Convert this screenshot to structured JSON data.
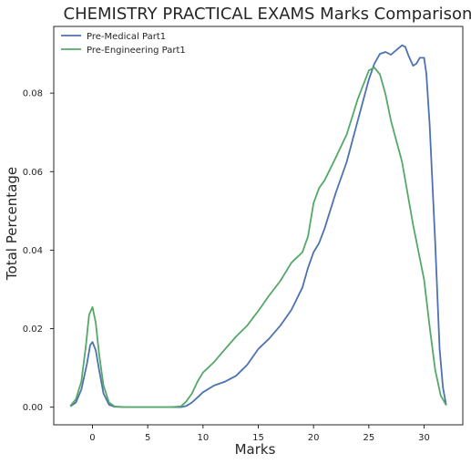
{
  "chart_data": {
    "type": "line",
    "title": "CHEMISTRY PRACTICAL EXAMS Marks Comparison",
    "xlabel": "Marks",
    "ylabel": "Total Percentage",
    "xlim": [
      -3.5,
      33.5
    ],
    "ylim": [
      -0.0045,
      0.097
    ],
    "xticks": [
      0,
      5,
      10,
      15,
      20,
      25,
      30
    ],
    "yticks": [
      0.0,
      0.02,
      0.04,
      0.06,
      0.08
    ],
    "grid": false,
    "legend_position": "top-left",
    "series": [
      {
        "name": "Pre-Medical Part1",
        "color": "#4c72b0",
        "points": [
          [
            -2,
            0.0002
          ],
          [
            -1.5,
            0.0012
          ],
          [
            -1,
            0.0045
          ],
          [
            -0.5,
            0.011
          ],
          [
            -0.2,
            0.0158
          ],
          [
            0,
            0.0166
          ],
          [
            0.3,
            0.0145
          ],
          [
            0.6,
            0.0095
          ],
          [
            1,
            0.0035
          ],
          [
            1.5,
            0.0006
          ],
          [
            2,
            0.0001
          ],
          [
            3,
            0
          ],
          [
            5,
            0
          ],
          [
            7,
            0
          ],
          [
            8,
            0
          ],
          [
            8.5,
            0.0003
          ],
          [
            9,
            0.0012
          ],
          [
            9.5,
            0.0025
          ],
          [
            10,
            0.0038
          ],
          [
            11,
            0.0055
          ],
          [
            12,
            0.0065
          ],
          [
            13,
            0.008
          ],
          [
            14,
            0.0108
          ],
          [
            15,
            0.0148
          ],
          [
            16,
            0.0175
          ],
          [
            17,
            0.0208
          ],
          [
            18,
            0.0248
          ],
          [
            19,
            0.0305
          ],
          [
            19.5,
            0.0355
          ],
          [
            20,
            0.0395
          ],
          [
            20.5,
            0.0418
          ],
          [
            21,
            0.0455
          ],
          [
            22,
            0.0545
          ],
          [
            23,
            0.0625
          ],
          [
            24,
            0.073
          ],
          [
            25,
            0.0835
          ],
          [
            25.5,
            0.0875
          ],
          [
            26,
            0.09
          ],
          [
            26.5,
            0.0905
          ],
          [
            27,
            0.0898
          ],
          [
            27.5,
            0.091
          ],
          [
            28,
            0.0922
          ],
          [
            28.3,
            0.0918
          ],
          [
            28.6,
            0.0895
          ],
          [
            29,
            0.087
          ],
          [
            29.3,
            0.0875
          ],
          [
            29.6,
            0.089
          ],
          [
            30,
            0.089
          ],
          [
            30.2,
            0.085
          ],
          [
            30.5,
            0.072
          ],
          [
            31,
            0.042
          ],
          [
            31.4,
            0.015
          ],
          [
            31.7,
            0.005
          ],
          [
            32,
            0.0005
          ]
        ]
      },
      {
        "name": "Pre-Engineering Part1",
        "color": "#55a868",
        "points": [
          [
            -2,
            0.0003
          ],
          [
            -1.5,
            0.002
          ],
          [
            -1,
            0.0065
          ],
          [
            -0.6,
            0.0155
          ],
          [
            -0.3,
            0.0235
          ],
          [
            0,
            0.0255
          ],
          [
            0.3,
            0.0215
          ],
          [
            0.6,
            0.0135
          ],
          [
            1,
            0.0055
          ],
          [
            1.5,
            0.0012
          ],
          [
            2,
            0.0002
          ],
          [
            3,
            0
          ],
          [
            5,
            0
          ],
          [
            7,
            0
          ],
          [
            8,
            0.0002
          ],
          [
            8.5,
            0.0015
          ],
          [
            9,
            0.0035
          ],
          [
            9.5,
            0.0065
          ],
          [
            10,
            0.0088
          ],
          [
            11,
            0.0115
          ],
          [
            12,
            0.0148
          ],
          [
            13,
            0.018
          ],
          [
            14,
            0.0208
          ],
          [
            15,
            0.0245
          ],
          [
            16,
            0.0285
          ],
          [
            17,
            0.0322
          ],
          [
            18,
            0.0368
          ],
          [
            19,
            0.0395
          ],
          [
            19.5,
            0.0435
          ],
          [
            20,
            0.052
          ],
          [
            20.5,
            0.0558
          ],
          [
            21,
            0.0578
          ],
          [
            22,
            0.0635
          ],
          [
            23,
            0.0695
          ],
          [
            24,
            0.0785
          ],
          [
            25,
            0.0858
          ],
          [
            25.5,
            0.0865
          ],
          [
            26,
            0.0848
          ],
          [
            26.5,
            0.0798
          ],
          [
            27,
            0.073
          ],
          [
            28,
            0.0625
          ],
          [
            29,
            0.0465
          ],
          [
            30,
            0.0325
          ],
          [
            30.5,
            0.0205
          ],
          [
            31,
            0.0095
          ],
          [
            31.5,
            0.003
          ],
          [
            32,
            0.0005
          ]
        ]
      }
    ]
  }
}
